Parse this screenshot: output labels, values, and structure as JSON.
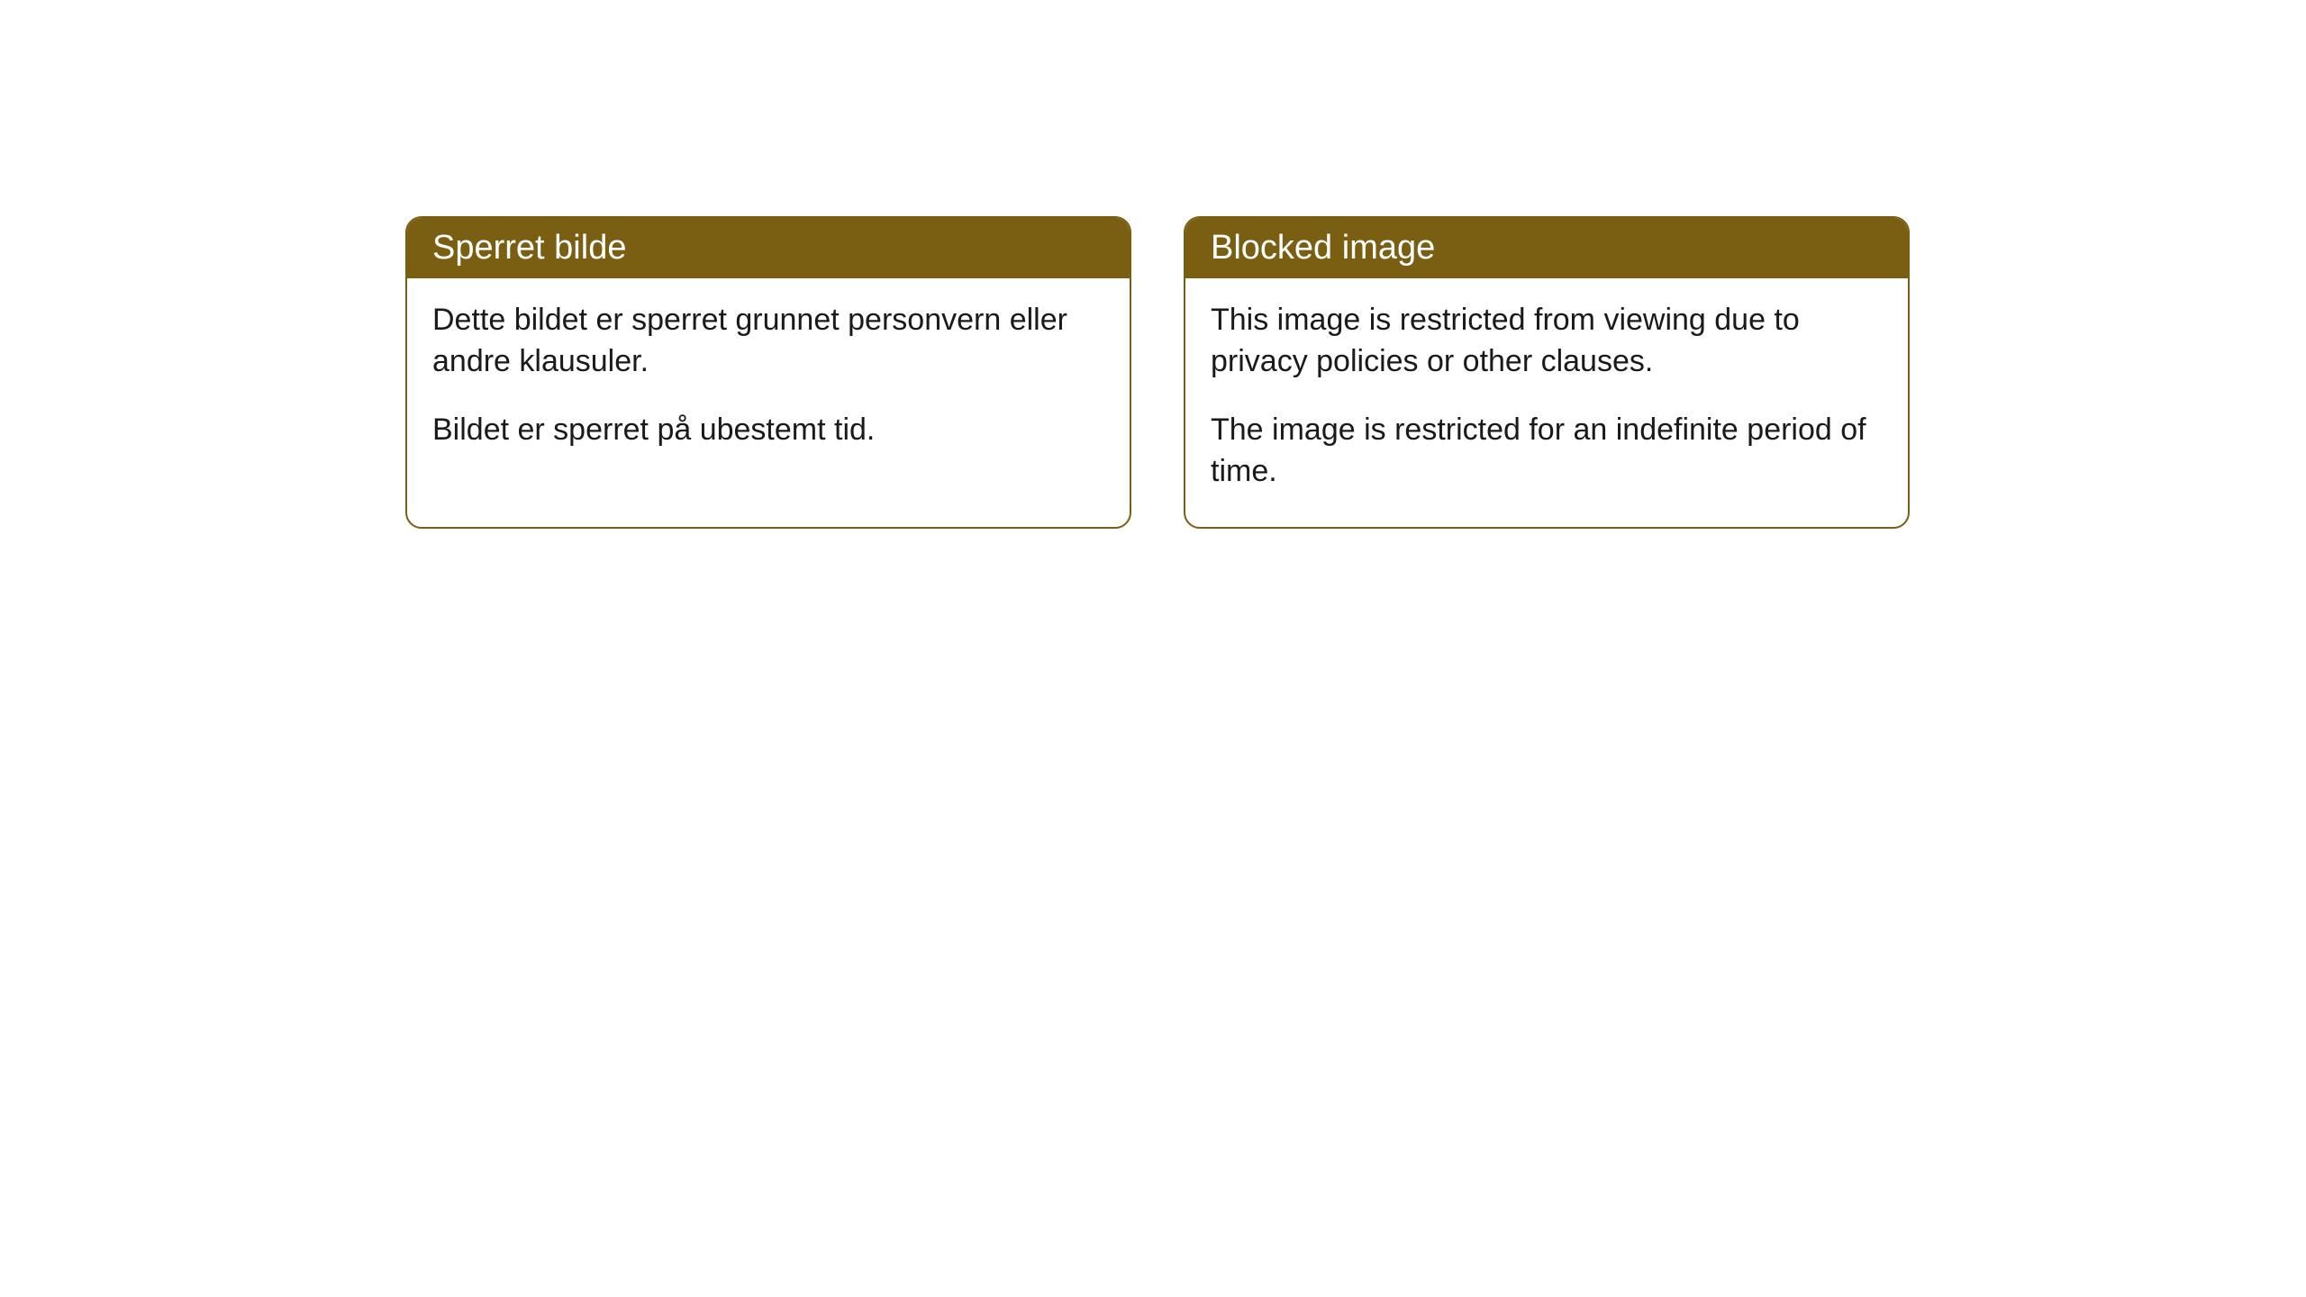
{
  "cards": [
    {
      "title": "Sperret bilde",
      "paragraph1": "Dette bildet er sperret grunnet personvern eller andre klausuler.",
      "paragraph2": "Bildet er sperret på ubestemt tid."
    },
    {
      "title": "Blocked image",
      "paragraph1": "This image is restricted from viewing due to privacy policies or other clauses.",
      "paragraph2": "The image is restricted for an indefinite period of time."
    }
  ],
  "styling": {
    "header_background": "#7a5e12",
    "header_text_color": "#ffffff",
    "body_background": "#ffffff",
    "body_text_color": "#1a1a1a",
    "border_color": "#7a5e12",
    "border_radius": 18,
    "title_fontsize": 38,
    "body_fontsize": 34
  }
}
